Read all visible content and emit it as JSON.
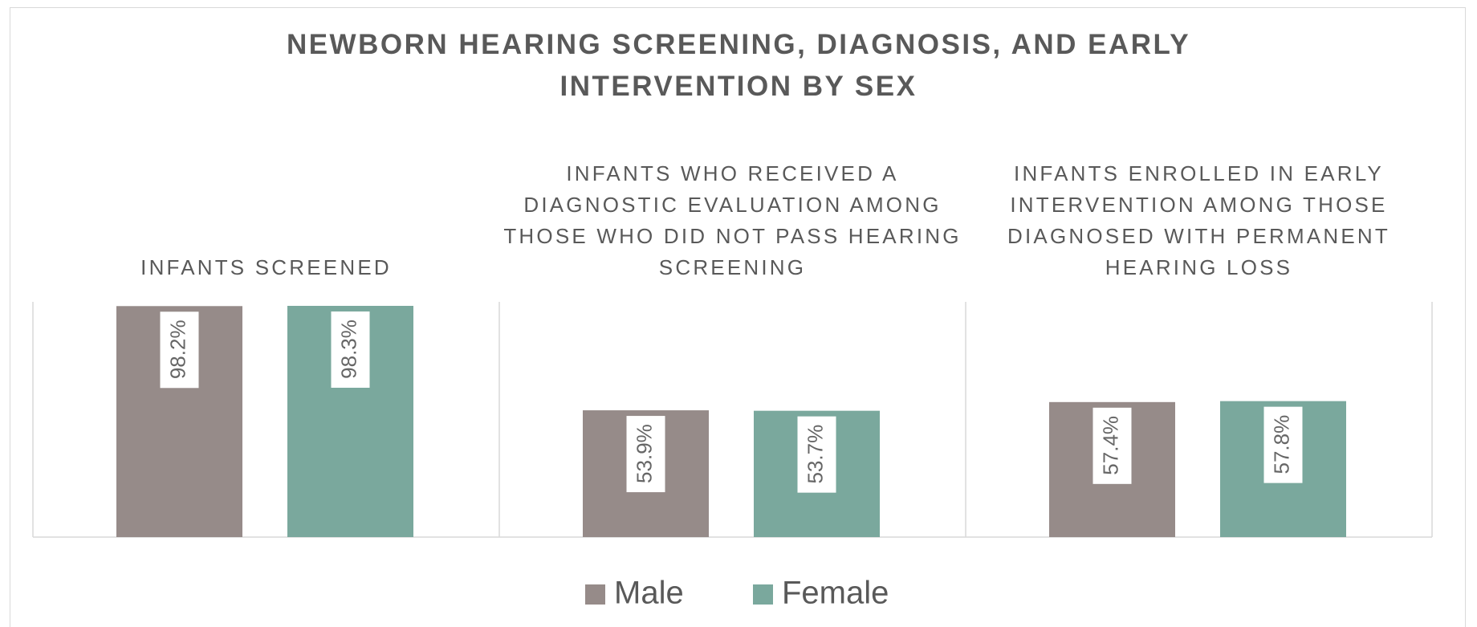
{
  "chart_data": {
    "type": "bar",
    "title": "NEWBORN HEARING SCREENING, DIAGNOSIS, AND EARLY INTERVENTION BY SEX",
    "categories": [
      "INFANTS SCREENED",
      "INFANTS WHO RECEIVED A DIAGNOSTIC EVALUATION AMONG THOSE WHO DID NOT PASS HEARING SCREENING",
      "INFANTS ENROLLED IN EARLY INTERVENTION AMONG THOSE DIAGNOSED WITH PERMANENT HEARING LOSS"
    ],
    "series": [
      {
        "name": "Male",
        "color": "#968b89",
        "values": [
          98.2,
          53.9,
          57.4
        ],
        "value_labels": [
          "98.2%",
          "53.9%",
          "57.4%"
        ]
      },
      {
        "name": "Female",
        "color": "#7aa89d",
        "values": [
          98.3,
          53.7,
          57.8
        ],
        "value_labels": [
          "98.3%",
          "53.7%",
          "57.8%"
        ]
      }
    ],
    "ylim": [
      0,
      100
    ],
    "legend": "bottom"
  }
}
